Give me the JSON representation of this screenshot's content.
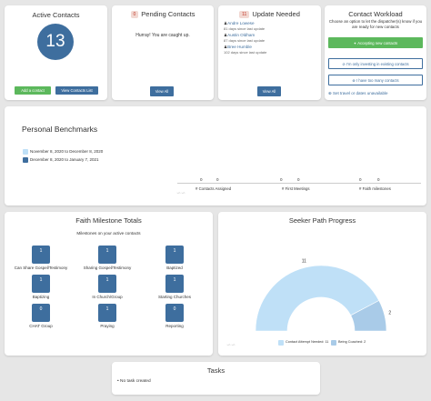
{
  "active_contacts": {
    "title": "Active Contacts",
    "count": "13",
    "add_contact": "Add a contact",
    "view_list": "View Contacts List"
  },
  "pending_contacts": {
    "badge": "0",
    "title": "Pending Contacts",
    "message": "Hurray! You are caught up.",
    "view_all": "View All"
  },
  "update_needed": {
    "badge": "11",
    "title": "Update Needed",
    "people": [
      {
        "name": "Andre Lowese",
        "detail": "81 days since last update"
      },
      {
        "name": "Austin Oldham",
        "detail": "87 days since last update"
      },
      {
        "name": "Bree Humble",
        "detail": "102 days since last update"
      }
    ],
    "view_all": "View All"
  },
  "contact_workload": {
    "title": "Contact Workload",
    "description": "Choose an option to let the dispatcher(s) know if you are ready for new contacts",
    "accepting": "✦ Accepting new contacts",
    "investing": "⊘ I'm only investing in existing contacts",
    "too_many": "⊗ I have too many contacts",
    "travel_link": "⊕ Set travel or dates unavailable"
  },
  "benchmarks": {
    "title": "Personal Benchmarks",
    "legend": [
      {
        "label": "November 8, 2020 to December 8, 2020",
        "color": "#bfe0f7"
      },
      {
        "label": "December 8, 2020 to January 7, 2021",
        "color": "#3e6e9e"
      }
    ],
    "metrics": [
      {
        "label": "# Contacts Assigned",
        "prev": "0",
        "curr": "0"
      },
      {
        "label": "# First Meetings",
        "prev": "0",
        "curr": "0"
      },
      {
        "label": "# Faith milestones",
        "prev": "0",
        "curr": "0"
      }
    ]
  },
  "faith_milestones": {
    "title": "Faith Milestone Totals",
    "subtitle": "Milestones on your active contacts",
    "items": [
      {
        "label": "Can Share Gospel/Testimony",
        "value": "1"
      },
      {
        "label": "Sharing Gospel/Testimony",
        "value": "1"
      },
      {
        "label": "Baptized",
        "value": "1"
      },
      {
        "label": "Baptizing",
        "value": "1"
      },
      {
        "label": "In Church/Group",
        "value": "1"
      },
      {
        "label": "Starting Churches",
        "value": "1"
      },
      {
        "label": "CHAT Group",
        "value": "0"
      },
      {
        "label": "Praying",
        "value": "1"
      },
      {
        "label": "Reporting",
        "value": "0"
      }
    ]
  },
  "seeker_path": {
    "title": "Seeker Path Progress",
    "chart_data": {
      "type": "pie",
      "shape": "half-donut",
      "series": [
        {
          "name": "Contact Attempt Needed: 11",
          "value": 11,
          "label": "11",
          "color": "#bfe0f7"
        },
        {
          "name": "Being Coached: 2",
          "value": 2,
          "label": "2",
          "color": "#a9cbe8"
        }
      ]
    }
  },
  "tasks": {
    "title": "Tasks",
    "items": [
      "No task created"
    ]
  }
}
